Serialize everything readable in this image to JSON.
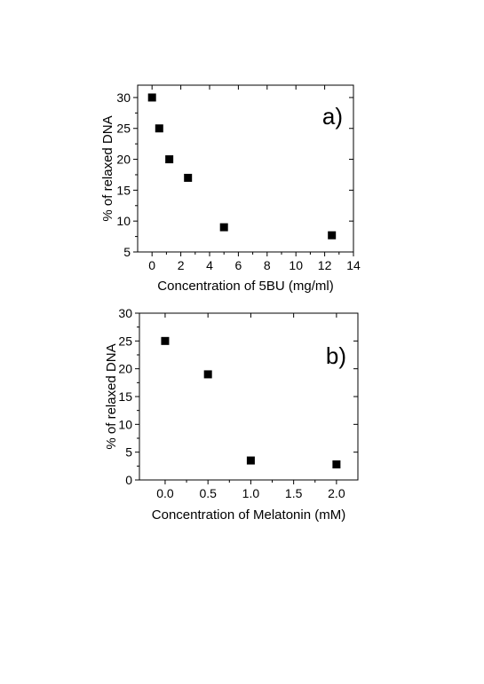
{
  "chart_data": [
    {
      "type": "scatter",
      "panel_label": "a)",
      "xlabel": "Concentration of 5BU (mg/ml)",
      "ylabel": "% of relaxed DNA",
      "xlim": [
        -1,
        14
      ],
      "ylim": [
        5,
        32
      ],
      "xticks": [
        0,
        2,
        4,
        6,
        8,
        10,
        12,
        14
      ],
      "yticks": [
        5,
        10,
        15,
        20,
        25,
        30
      ],
      "xtick_labels": [
        "0",
        "2",
        "4",
        "6",
        "8",
        "10",
        "12",
        "14"
      ],
      "ytick_labels": [
        "5",
        "10",
        "15",
        "20",
        "25",
        "30"
      ],
      "grid": false,
      "marker": "square",
      "color": "#000000",
      "x": [
        0,
        0.5,
        1.2,
        2.5,
        5,
        12.5
      ],
      "y": [
        30,
        25,
        20,
        17,
        9,
        7.7
      ]
    },
    {
      "type": "scatter",
      "panel_label": "b)",
      "xlabel": "Concentration of Melatonin (mM)",
      "ylabel": "% of relaxed DNA",
      "xlim": [
        -0.3,
        2.25
      ],
      "ylim": [
        0,
        30
      ],
      "xticks": [
        0.0,
        0.5,
        1.0,
        1.5,
        2.0
      ],
      "yticks": [
        0,
        5,
        10,
        15,
        20,
        25,
        30
      ],
      "xtick_labels": [
        "0.0",
        "0.5",
        "1.0",
        "1.5",
        "2.0"
      ],
      "ytick_labels": [
        "0",
        "5",
        "10",
        "15",
        "20",
        "25",
        "30"
      ],
      "grid": false,
      "marker": "square",
      "color": "#000000",
      "x": [
        0.0,
        0.5,
        1.0,
        2.0
      ],
      "y": [
        25,
        19,
        3.5,
        2.8
      ]
    }
  ]
}
